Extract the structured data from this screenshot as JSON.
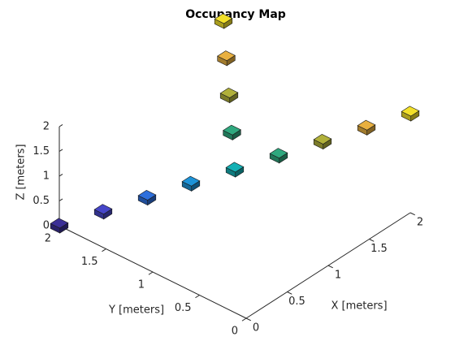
{
  "chart_data": {
    "type": "voxel3d",
    "title": "Occupancy Map",
    "xlabel": "X [meters]",
    "ylabel": "Y [meters]",
    "zlabel": "Z [meters]",
    "x": [
      0,
      0.25,
      0.5,
      0.75,
      1,
      1.25,
      1.5,
      1.75,
      2,
      1.25,
      1.5,
      1.75,
      2
    ],
    "y": [
      2,
      1.75,
      1.5,
      1.25,
      1,
      0.75,
      0.5,
      0.25,
      0,
      1.25,
      1.5,
      1.75,
      2
    ],
    "z": [
      0,
      0.25,
      0.5,
      0.75,
      1,
      1.25,
      1.5,
      1.75,
      2,
      1.25,
      1.5,
      1.75,
      2
    ],
    "colors": [
      "#3b2f96",
      "#4646c8",
      "#2e6fdc",
      "#1d93d8",
      "#14b0b4",
      "#2fa87e",
      "#b0b03a",
      "#e8b040",
      "#f2e02a",
      "#2fa87e",
      "#b0b03a",
      "#e8b040",
      "#f2e02a"
    ],
    "xlim": [
      0,
      2
    ],
    "ylim": [
      0,
      2
    ],
    "zlim": [
      0,
      2
    ],
    "xticks": [
      0,
      0.5,
      1,
      1.5,
      2
    ],
    "yticks": [
      0,
      0.5,
      1,
      1.5,
      2
    ],
    "zticks": [
      0,
      0.5,
      1,
      1.5,
      2
    ]
  }
}
